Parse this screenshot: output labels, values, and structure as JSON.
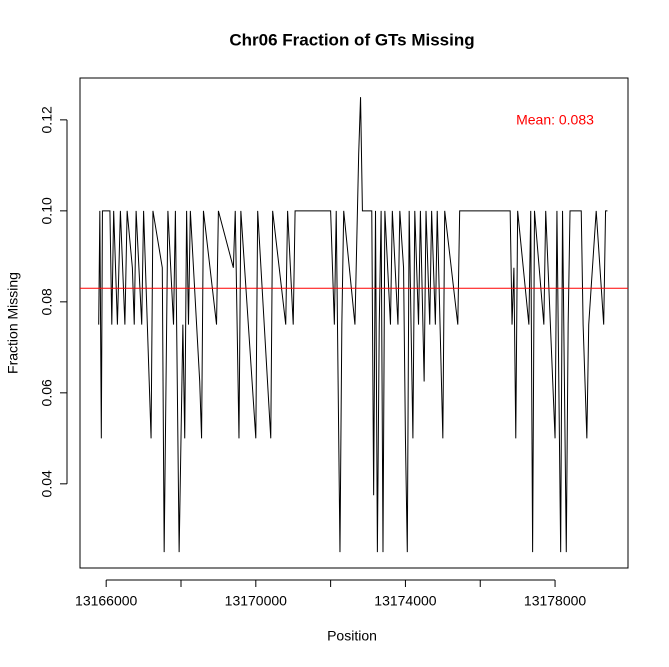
{
  "chart_data": {
    "type": "line",
    "title": "Chr06 Fraction of GTs Missing",
    "x_label": "Position",
    "y_label": "Fraction Missing",
    "annotation": "Mean: 0.083",
    "annotation_color": "#ff0000",
    "mean": 0.083,
    "mean_color": "#ff0000",
    "color": "#000000",
    "xlim": [
      13165300,
      13179950
    ],
    "xticks": [
      13166000,
      13170000,
      13174000,
      13178000
    ],
    "xminor_ticks": [
      13168000,
      13172000,
      13176000
    ],
    "ylim": [
      0.0215,
      0.1292
    ],
    "yticks": [
      0.04,
      0.06,
      0.08,
      {
        "value": 0.1,
        "label": "0.10"
      },
      0.12
    ],
    "x": [
      13165800,
      13165830,
      13165870,
      13165900,
      13166100,
      13166150,
      13166200,
      13166300,
      13166380,
      13166500,
      13166560,
      13166700,
      13166750,
      13166800,
      13166950,
      13167000,
      13167200,
      13167250,
      13167500,
      13167550,
      13167600,
      13167650,
      13167800,
      13167850,
      13167950,
      13168000,
      13168050,
      13168100,
      13168150,
      13168200,
      13168250,
      13168500,
      13168550,
      13168600,
      13168950,
      13169000,
      13169400,
      13169450,
      13169550,
      13169600,
      13170000,
      13170050,
      13170400,
      13170450,
      13170800,
      13170850,
      13171000,
      13171050,
      13172000,
      13172050,
      13172100,
      13172150,
      13172200,
      13172250,
      13172300,
      13172350,
      13172650,
      13172750,
      13172800,
      13172850,
      13173100,
      13173150,
      13173200,
      13173250,
      13173300,
      13173350,
      13173400,
      13173450,
      13173600,
      13173650,
      13173800,
      13173850,
      13173950,
      13174000,
      13174050,
      13174100,
      13174200,
      13174250,
      13174350,
      13174400,
      13174500,
      13174550,
      13174650,
      13174700,
      13174800,
      13174850,
      13175000,
      13175050,
      13175400,
      13175450,
      13176800,
      13176850,
      13176900,
      13176950,
      13177000,
      13177300,
      13177350,
      13177400,
      13177450,
      13177700,
      13177750,
      13178000,
      13178050,
      13178150,
      13178200,
      13178300,
      13178350,
      13178400,
      13178700,
      13178750,
      13178850,
      13178900,
      13179100,
      13179300,
      13179350,
      13179400
    ],
    "values": [
      0.075,
      0.1,
      0.05,
      0.1,
      0.1,
      0.075,
      0.1,
      0.075,
      0.1,
      0.075,
      0.1,
      0.0875,
      0.075,
      0.1,
      0.075,
      0.1,
      0.05,
      0.1,
      0.0875,
      0.025,
      0.0625,
      0.1,
      0.075,
      0.1,
      0.025,
      0.05,
      0.075,
      0.05,
      0.1,
      0.075,
      0.1,
      0.0625,
      0.05,
      0.1,
      0.075,
      0.1,
      0.0875,
      0.1,
      0.05,
      0.1,
      0.05,
      0.1,
      0.05,
      0.1,
      0.075,
      0.1,
      0.075,
      0.1,
      0.1,
      0.0875,
      0.075,
      0.1,
      0.0625,
      0.025,
      0.075,
      0.1,
      0.075,
      0.1125,
      0.125,
      0.1,
      0.1,
      0.0375,
      0.1,
      0.025,
      0.075,
      0.1,
      0.025,
      0.1,
      0.075,
      0.1,
      0.075,
      0.1,
      0.0875,
      0.05,
      0.025,
      0.1,
      0.05,
      0.1,
      0.075,
      0.1,
      0.0625,
      0.1,
      0.075,
      0.1,
      0.075,
      0.1,
      0.05,
      0.1,
      0.075,
      0.1,
      0.1,
      0.075,
      0.0875,
      0.05,
      0.1,
      0.075,
      0.1,
      0.025,
      0.1,
      0.075,
      0.1,
      0.05,
      0.1,
      0.025,
      0.1,
      0.025,
      0.075,
      0.1,
      0.1,
      0.075,
      0.05,
      0.075,
      0.1,
      0.075,
      0.1,
      0.1
    ]
  }
}
